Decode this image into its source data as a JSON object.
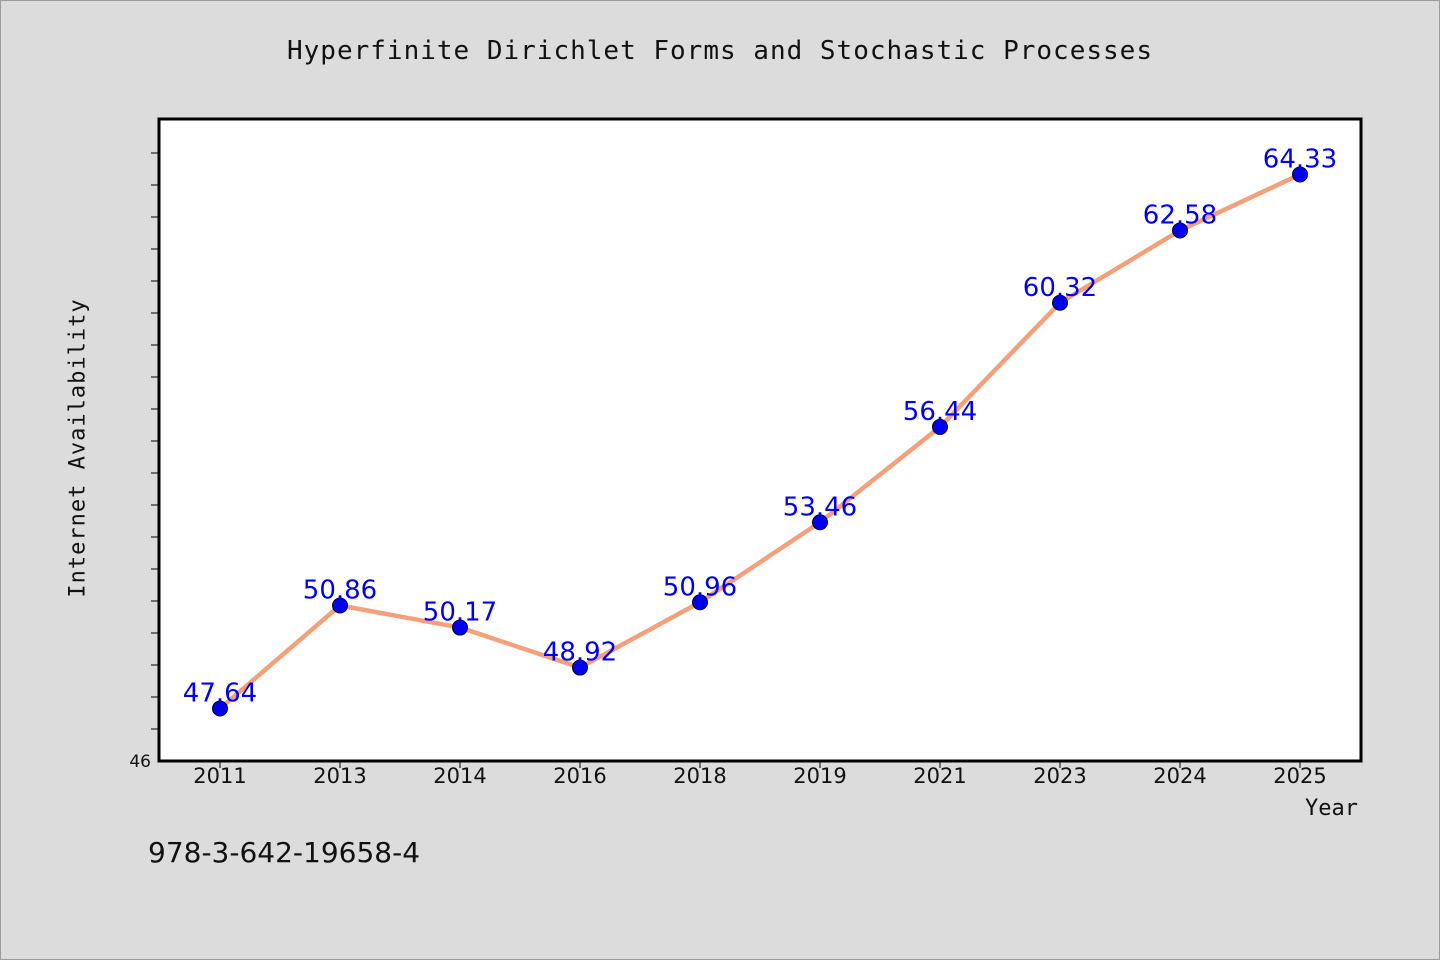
{
  "chart_data": {
    "type": "line",
    "title": "Hyperfinite Dirichlet Forms and Stochastic Processes",
    "xlabel": "Year",
    "ylabel": "Internet Availability",
    "categories": [
      "2011",
      "2013",
      "2014",
      "2016",
      "2018",
      "2019",
      "2021",
      "2023",
      "2024",
      "2025"
    ],
    "series": [
      {
        "values": [
          47.64,
          50.86,
          50.17,
          48.92,
          50.96,
          53.46,
          56.44,
          60.32,
          62.58,
          64.33
        ],
        "line_color": "#f4a07a",
        "marker_color": "#0000ee"
      }
    ],
    "data_labels": [
      "47.64",
      "50.86",
      "50.17",
      "48.92",
      "50.96",
      "53.46",
      "56.44",
      "60.32",
      "62.58",
      "64.33"
    ],
    "ylim": [
      46,
      66
    ],
    "y_tick_labels": [
      "46"
    ],
    "grid": false,
    "legend": "none"
  },
  "footnote": "978-3-642-19658-4",
  "colors": {
    "background": "#dcdcdc",
    "plot_background": "#ffffff",
    "line": "#f4a07a",
    "marker": "#0000ee",
    "data_label": "#0000ee"
  }
}
